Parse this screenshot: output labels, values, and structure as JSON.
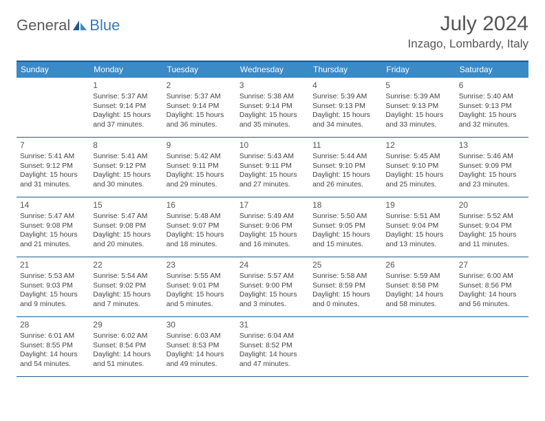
{
  "logo": {
    "general": "General",
    "blue": "Blue"
  },
  "title": {
    "month_year": "July 2024",
    "location": "Inzago, Lombardy, Italy"
  },
  "colors": {
    "header_bar": "#3a8ac8",
    "border": "#1e5a8a",
    "text": "#444444",
    "title_text": "#555555",
    "logo_gray": "#5a5a5a",
    "logo_blue": "#3a7ab8"
  },
  "days_of_week": [
    "Sunday",
    "Monday",
    "Tuesday",
    "Wednesday",
    "Thursday",
    "Friday",
    "Saturday"
  ],
  "weeks": [
    [
      {
        "num": "",
        "sunrise": "",
        "sunset": "",
        "daylight": ""
      },
      {
        "num": "1",
        "sunrise": "Sunrise: 5:37 AM",
        "sunset": "Sunset: 9:14 PM",
        "daylight": "Daylight: 15 hours and 37 minutes."
      },
      {
        "num": "2",
        "sunrise": "Sunrise: 5:37 AM",
        "sunset": "Sunset: 9:14 PM",
        "daylight": "Daylight: 15 hours and 36 minutes."
      },
      {
        "num": "3",
        "sunrise": "Sunrise: 5:38 AM",
        "sunset": "Sunset: 9:14 PM",
        "daylight": "Daylight: 15 hours and 35 minutes."
      },
      {
        "num": "4",
        "sunrise": "Sunrise: 5:39 AM",
        "sunset": "Sunset: 9:13 PM",
        "daylight": "Daylight: 15 hours and 34 minutes."
      },
      {
        "num": "5",
        "sunrise": "Sunrise: 5:39 AM",
        "sunset": "Sunset: 9:13 PM",
        "daylight": "Daylight: 15 hours and 33 minutes."
      },
      {
        "num": "6",
        "sunrise": "Sunrise: 5:40 AM",
        "sunset": "Sunset: 9:13 PM",
        "daylight": "Daylight: 15 hours and 32 minutes."
      }
    ],
    [
      {
        "num": "7",
        "sunrise": "Sunrise: 5:41 AM",
        "sunset": "Sunset: 9:12 PM",
        "daylight": "Daylight: 15 hours and 31 minutes."
      },
      {
        "num": "8",
        "sunrise": "Sunrise: 5:41 AM",
        "sunset": "Sunset: 9:12 PM",
        "daylight": "Daylight: 15 hours and 30 minutes."
      },
      {
        "num": "9",
        "sunrise": "Sunrise: 5:42 AM",
        "sunset": "Sunset: 9:11 PM",
        "daylight": "Daylight: 15 hours and 29 minutes."
      },
      {
        "num": "10",
        "sunrise": "Sunrise: 5:43 AM",
        "sunset": "Sunset: 9:11 PM",
        "daylight": "Daylight: 15 hours and 27 minutes."
      },
      {
        "num": "11",
        "sunrise": "Sunrise: 5:44 AM",
        "sunset": "Sunset: 9:10 PM",
        "daylight": "Daylight: 15 hours and 26 minutes."
      },
      {
        "num": "12",
        "sunrise": "Sunrise: 5:45 AM",
        "sunset": "Sunset: 9:10 PM",
        "daylight": "Daylight: 15 hours and 25 minutes."
      },
      {
        "num": "13",
        "sunrise": "Sunrise: 5:46 AM",
        "sunset": "Sunset: 9:09 PM",
        "daylight": "Daylight: 15 hours and 23 minutes."
      }
    ],
    [
      {
        "num": "14",
        "sunrise": "Sunrise: 5:47 AM",
        "sunset": "Sunset: 9:08 PM",
        "daylight": "Daylight: 15 hours and 21 minutes."
      },
      {
        "num": "15",
        "sunrise": "Sunrise: 5:47 AM",
        "sunset": "Sunset: 9:08 PM",
        "daylight": "Daylight: 15 hours and 20 minutes."
      },
      {
        "num": "16",
        "sunrise": "Sunrise: 5:48 AM",
        "sunset": "Sunset: 9:07 PM",
        "daylight": "Daylight: 15 hours and 18 minutes."
      },
      {
        "num": "17",
        "sunrise": "Sunrise: 5:49 AM",
        "sunset": "Sunset: 9:06 PM",
        "daylight": "Daylight: 15 hours and 16 minutes."
      },
      {
        "num": "18",
        "sunrise": "Sunrise: 5:50 AM",
        "sunset": "Sunset: 9:05 PM",
        "daylight": "Daylight: 15 hours and 15 minutes."
      },
      {
        "num": "19",
        "sunrise": "Sunrise: 5:51 AM",
        "sunset": "Sunset: 9:04 PM",
        "daylight": "Daylight: 15 hours and 13 minutes."
      },
      {
        "num": "20",
        "sunrise": "Sunrise: 5:52 AM",
        "sunset": "Sunset: 9:04 PM",
        "daylight": "Daylight: 15 hours and 11 minutes."
      }
    ],
    [
      {
        "num": "21",
        "sunrise": "Sunrise: 5:53 AM",
        "sunset": "Sunset: 9:03 PM",
        "daylight": "Daylight: 15 hours and 9 minutes."
      },
      {
        "num": "22",
        "sunrise": "Sunrise: 5:54 AM",
        "sunset": "Sunset: 9:02 PM",
        "daylight": "Daylight: 15 hours and 7 minutes."
      },
      {
        "num": "23",
        "sunrise": "Sunrise: 5:55 AM",
        "sunset": "Sunset: 9:01 PM",
        "daylight": "Daylight: 15 hours and 5 minutes."
      },
      {
        "num": "24",
        "sunrise": "Sunrise: 5:57 AM",
        "sunset": "Sunset: 9:00 PM",
        "daylight": "Daylight: 15 hours and 3 minutes."
      },
      {
        "num": "25",
        "sunrise": "Sunrise: 5:58 AM",
        "sunset": "Sunset: 8:59 PM",
        "daylight": "Daylight: 15 hours and 0 minutes."
      },
      {
        "num": "26",
        "sunrise": "Sunrise: 5:59 AM",
        "sunset": "Sunset: 8:58 PM",
        "daylight": "Daylight: 14 hours and 58 minutes."
      },
      {
        "num": "27",
        "sunrise": "Sunrise: 6:00 AM",
        "sunset": "Sunset: 8:56 PM",
        "daylight": "Daylight: 14 hours and 56 minutes."
      }
    ],
    [
      {
        "num": "28",
        "sunrise": "Sunrise: 6:01 AM",
        "sunset": "Sunset: 8:55 PM",
        "daylight": "Daylight: 14 hours and 54 minutes."
      },
      {
        "num": "29",
        "sunrise": "Sunrise: 6:02 AM",
        "sunset": "Sunset: 8:54 PM",
        "daylight": "Daylight: 14 hours and 51 minutes."
      },
      {
        "num": "30",
        "sunrise": "Sunrise: 6:03 AM",
        "sunset": "Sunset: 8:53 PM",
        "daylight": "Daylight: 14 hours and 49 minutes."
      },
      {
        "num": "31",
        "sunrise": "Sunrise: 6:04 AM",
        "sunset": "Sunset: 8:52 PM",
        "daylight": "Daylight: 14 hours and 47 minutes."
      },
      {
        "num": "",
        "sunrise": "",
        "sunset": "",
        "daylight": ""
      },
      {
        "num": "",
        "sunrise": "",
        "sunset": "",
        "daylight": ""
      },
      {
        "num": "",
        "sunrise": "",
        "sunset": "",
        "daylight": ""
      }
    ]
  ]
}
